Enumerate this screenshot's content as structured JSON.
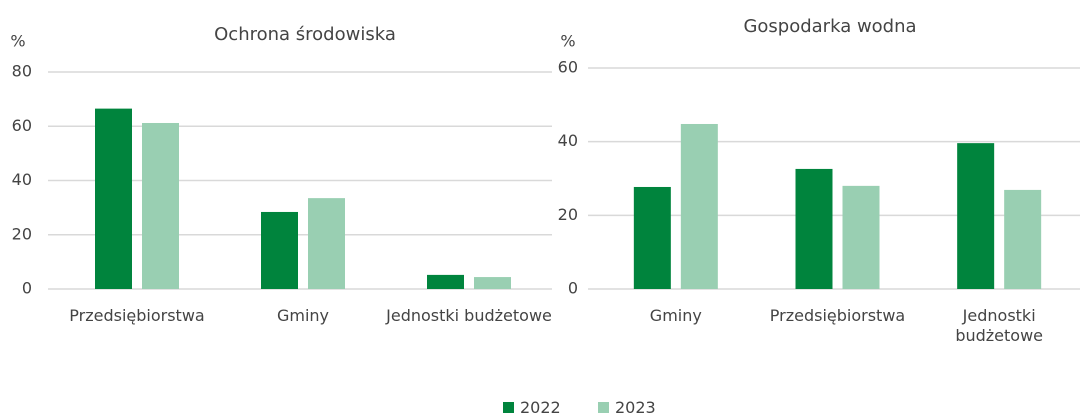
{
  "chart_data": [
    {
      "type": "bar",
      "title": "Ochrona środowiska",
      "ylabel": "%",
      "categories": [
        "Przedsiębiorstwa",
        "Gminy",
        "Jednostki budżetowe"
      ],
      "series": [
        {
          "name": "2022",
          "color": "#00843d",
          "values": [
            66.5,
            28.4,
            5.2
          ]
        },
        {
          "name": "2023",
          "color": "#99cfb2",
          "values": [
            61.2,
            33.5,
            4.4
          ]
        }
      ],
      "ylim": [
        0,
        80
      ],
      "yticks": [
        0,
        20,
        40,
        60,
        80
      ],
      "grid": true
    },
    {
      "type": "bar",
      "title": "Gospodarka wodna",
      "ylabel": "%",
      "categories": [
        "Gminy",
        "Przedsiębiorstwa",
        "Jednostki budżetowe"
      ],
      "series": [
        {
          "name": "2022",
          "color": "#00843d",
          "values": [
            27.7,
            32.6,
            39.6
          ]
        },
        {
          "name": "2023",
          "color": "#99cfb2",
          "values": [
            44.8,
            28.0,
            26.9
          ]
        }
      ],
      "ylim": [
        0,
        60
      ],
      "yticks": [
        0,
        20,
        40,
        60
      ],
      "grid": true
    }
  ]
}
